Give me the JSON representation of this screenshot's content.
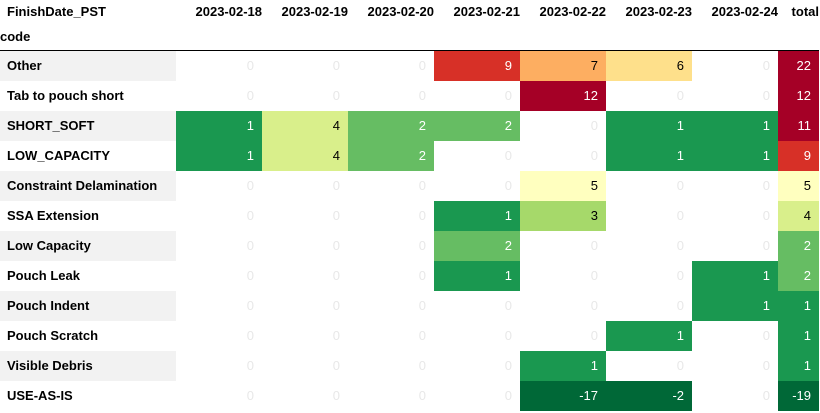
{
  "table": {
    "header_row_label": "FinishDate_PST",
    "index_label": "code",
    "columns": [
      "2023-02-18",
      "2023-02-19",
      "2023-02-20",
      "2023-02-21",
      "2023-02-22",
      "2023-02-23",
      "2023-02-24",
      "total"
    ],
    "rows": [
      {
        "label": "Other",
        "values": [
          "0",
          "0",
          "0",
          "9",
          "7",
          "6",
          "0",
          "22"
        ],
        "colors": [
          "#ffffff",
          "#ffffff",
          "#ffffff",
          "#d73027",
          "#fdae61",
          "#fee08b",
          "#ffffff",
          "#a50026"
        ],
        "text": [
          "#e8e8e8",
          "#e8e8e8",
          "#e8e8e8",
          "#ffffff",
          "#000000",
          "#000000",
          "#e8e8e8",
          "#ffffff"
        ]
      },
      {
        "label": "Tab to pouch short",
        "values": [
          "0",
          "0",
          "0",
          "0",
          "12",
          "0",
          "0",
          "12"
        ],
        "colors": [
          "#ffffff",
          "#ffffff",
          "#ffffff",
          "#ffffff",
          "#a50026",
          "#ffffff",
          "#ffffff",
          "#a50026"
        ],
        "text": [
          "#e8e8e8",
          "#e8e8e8",
          "#e8e8e8",
          "#e8e8e8",
          "#ffffff",
          "#e8e8e8",
          "#e8e8e8",
          "#ffffff"
        ]
      },
      {
        "label": "SHORT_SOFT",
        "values": [
          "1",
          "4",
          "2",
          "2",
          "0",
          "1",
          "1",
          "11"
        ],
        "colors": [
          "#1a9850",
          "#d9ef8b",
          "#66bd63",
          "#66bd63",
          "#ffffff",
          "#1a9850",
          "#1a9850",
          "#a50026"
        ],
        "text": [
          "#ffffff",
          "#000000",
          "#ffffff",
          "#ffffff",
          "#e8e8e8",
          "#ffffff",
          "#ffffff",
          "#ffffff"
        ]
      },
      {
        "label": "LOW_CAPACITY",
        "values": [
          "1",
          "4",
          "2",
          "0",
          "0",
          "1",
          "1",
          "9"
        ],
        "colors": [
          "#1a9850",
          "#d9ef8b",
          "#66bd63",
          "#ffffff",
          "#ffffff",
          "#1a9850",
          "#1a9850",
          "#d73027"
        ],
        "text": [
          "#ffffff",
          "#000000",
          "#ffffff",
          "#e8e8e8",
          "#e8e8e8",
          "#ffffff",
          "#ffffff",
          "#ffffff"
        ]
      },
      {
        "label": "Constraint Delamination",
        "values": [
          "0",
          "0",
          "0",
          "0",
          "5",
          "0",
          "0",
          "5"
        ],
        "colors": [
          "#ffffff",
          "#ffffff",
          "#ffffff",
          "#ffffff",
          "#ffffbf",
          "#ffffff",
          "#ffffff",
          "#ffffbf"
        ],
        "text": [
          "#e8e8e8",
          "#e8e8e8",
          "#e8e8e8",
          "#e8e8e8",
          "#000000",
          "#e8e8e8",
          "#e8e8e8",
          "#000000"
        ]
      },
      {
        "label": "SSA Extension",
        "values": [
          "0",
          "0",
          "0",
          "1",
          "3",
          "0",
          "0",
          "4"
        ],
        "colors": [
          "#ffffff",
          "#ffffff",
          "#ffffff",
          "#1a9850",
          "#a6d96a",
          "#ffffff",
          "#ffffff",
          "#d9ef8b"
        ],
        "text": [
          "#e8e8e8",
          "#e8e8e8",
          "#e8e8e8",
          "#ffffff",
          "#000000",
          "#e8e8e8",
          "#e8e8e8",
          "#000000"
        ]
      },
      {
        "label": "Low Capacity",
        "values": [
          "0",
          "0",
          "0",
          "2",
          "0",
          "0",
          "0",
          "2"
        ],
        "colors": [
          "#ffffff",
          "#ffffff",
          "#ffffff",
          "#66bd63",
          "#ffffff",
          "#ffffff",
          "#ffffff",
          "#66bd63"
        ],
        "text": [
          "#e8e8e8",
          "#e8e8e8",
          "#e8e8e8",
          "#ffffff",
          "#e8e8e8",
          "#e8e8e8",
          "#e8e8e8",
          "#ffffff"
        ]
      },
      {
        "label": "Pouch Leak",
        "values": [
          "0",
          "0",
          "0",
          "1",
          "0",
          "0",
          "1",
          "2"
        ],
        "colors": [
          "#ffffff",
          "#ffffff",
          "#ffffff",
          "#1a9850",
          "#ffffff",
          "#ffffff",
          "#1a9850",
          "#66bd63"
        ],
        "text": [
          "#e8e8e8",
          "#e8e8e8",
          "#e8e8e8",
          "#ffffff",
          "#e8e8e8",
          "#e8e8e8",
          "#ffffff",
          "#ffffff"
        ]
      },
      {
        "label": "Pouch Indent",
        "values": [
          "0",
          "0",
          "0",
          "0",
          "0",
          "0",
          "1",
          "1"
        ],
        "colors": [
          "#ffffff",
          "#ffffff",
          "#ffffff",
          "#ffffff",
          "#ffffff",
          "#ffffff",
          "#1a9850",
          "#1a9850"
        ],
        "text": [
          "#e8e8e8",
          "#e8e8e8",
          "#e8e8e8",
          "#e8e8e8",
          "#e8e8e8",
          "#e8e8e8",
          "#ffffff",
          "#ffffff"
        ]
      },
      {
        "label": "Pouch Scratch",
        "values": [
          "0",
          "0",
          "0",
          "0",
          "0",
          "1",
          "0",
          "1"
        ],
        "colors": [
          "#ffffff",
          "#ffffff",
          "#ffffff",
          "#ffffff",
          "#ffffff",
          "#1a9850",
          "#ffffff",
          "#1a9850"
        ],
        "text": [
          "#e8e8e8",
          "#e8e8e8",
          "#e8e8e8",
          "#e8e8e8",
          "#e8e8e8",
          "#ffffff",
          "#e8e8e8",
          "#ffffff"
        ]
      },
      {
        "label": "Visible Debris",
        "values": [
          "0",
          "0",
          "0",
          "0",
          "1",
          "0",
          "0",
          "1"
        ],
        "colors": [
          "#ffffff",
          "#ffffff",
          "#ffffff",
          "#ffffff",
          "#1a9850",
          "#ffffff",
          "#ffffff",
          "#1a9850"
        ],
        "text": [
          "#e8e8e8",
          "#e8e8e8",
          "#e8e8e8",
          "#e8e8e8",
          "#ffffff",
          "#e8e8e8",
          "#e8e8e8",
          "#ffffff"
        ]
      },
      {
        "label": "USE-AS-IS",
        "values": [
          "0",
          "0",
          "0",
          "0",
          "-17",
          "-2",
          "0",
          "-19"
        ],
        "colors": [
          "#ffffff",
          "#ffffff",
          "#ffffff",
          "#ffffff",
          "#006837",
          "#006837",
          "#ffffff",
          "#006837"
        ],
        "text": [
          "#e8e8e8",
          "#e8e8e8",
          "#e8e8e8",
          "#e8e8e8",
          "#ffffff",
          "#ffffff",
          "#e8e8e8",
          "#ffffff"
        ]
      }
    ]
  }
}
